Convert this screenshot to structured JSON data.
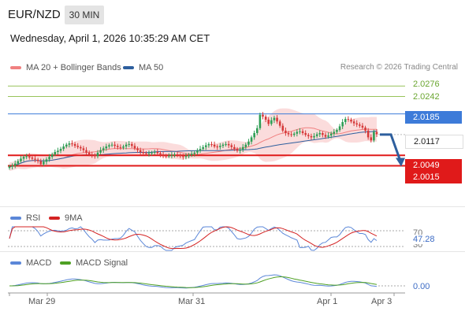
{
  "header": {
    "pair": "EUR/NZD",
    "timeframe": "30 MIN",
    "timestamp": "Wednesday, April 1, 2026 10:35:29 AM CET",
    "credit": "Research © 2026 Trading Central"
  },
  "colors": {
    "bollinger": "#f08080",
    "ma50": "#2e5f9e",
    "resistance": "#98c45a",
    "pivot": "#3d7bd9",
    "support": "#e01a1a",
    "price": "#222222",
    "up_candle": "#2e9e55",
    "down_candle": "#d63a3a",
    "rsi": "#5b87d8",
    "rsi_ma": "#d42323",
    "macd": "#5b87d8",
    "macd_signal": "#4ea023"
  },
  "chart_data": [
    {
      "type": "candlestick",
      "title": "EUR/NZD",
      "legend": [
        "MA 20 + Bollinger Bands",
        "MA 50"
      ],
      "legend_position": "top-left",
      "x_ticks": [
        "Mar 29",
        "Mar 31",
        "Apr 1",
        "Apr 3"
      ],
      "ylim": [
        1.99,
        2.03
      ],
      "levels": [
        {
          "value": "2.0276",
          "kind": "resistance"
        },
        {
          "value": "2.0242",
          "kind": "resistance"
        },
        {
          "value": "2.0185",
          "kind": "pivot"
        },
        {
          "value": "2.0117",
          "kind": "price"
        },
        {
          "value": "2.0049",
          "kind": "support"
        },
        {
          "value": "2.0015",
          "kind": "support"
        }
      ],
      "close_series": [
        2.0012,
        2.0015,
        2.0022,
        2.003,
        2.0038,
        2.0044,
        2.0046,
        2.0042,
        2.0038,
        2.0035,
        2.003,
        2.002,
        2.0028,
        2.0036,
        2.0044,
        2.0052,
        2.006,
        2.0064,
        2.007,
        2.0078,
        2.0084,
        2.0088,
        2.0086,
        2.008,
        2.0076,
        2.0072,
        2.0066,
        2.0058,
        2.0052,
        2.005,
        2.0046,
        2.0058,
        2.0066,
        2.0072,
        2.0078,
        2.0082,
        2.0084,
        2.008,
        2.0076,
        2.0074,
        2.0078,
        2.0084,
        2.0086,
        2.008,
        2.0072,
        2.0066,
        2.006,
        2.0056,
        2.0054,
        2.0056,
        2.0058,
        2.006,
        2.0056,
        2.0052,
        2.0048,
        2.0046,
        2.0048,
        2.005,
        2.0052,
        2.005,
        2.0046,
        2.0044,
        2.0046,
        2.005,
        2.0054,
        2.0058,
        2.0064,
        2.007,
        2.0076,
        2.0082,
        2.0086,
        2.0084,
        2.0078,
        2.0076,
        2.008,
        2.0084,
        2.0086,
        2.0082,
        2.0076,
        2.007,
        2.0064,
        2.0068,
        2.0076,
        2.0084,
        2.0094,
        2.0108,
        2.0122,
        2.0138,
        2.0182,
        2.0176,
        2.0166,
        2.0152,
        2.0164,
        2.0172,
        2.016,
        2.0146,
        2.013,
        2.0122,
        2.0118,
        2.0116,
        2.012,
        2.0126,
        2.0128,
        2.0122,
        2.0116,
        2.0112,
        2.0108,
        2.0112,
        2.0118,
        2.0122,
        2.0116,
        2.011,
        2.0114,
        2.012,
        2.0126,
        2.0132,
        2.0144,
        2.0158,
        2.0168,
        2.0166,
        2.016,
        2.0154,
        2.015,
        2.0146,
        2.014,
        2.013,
        2.0108,
        2.0098,
        2.0126,
        2.0118
      ],
      "forecast": {
        "from": "2.0117",
        "to": "2.0015"
      }
    },
    {
      "type": "line",
      "legend": [
        "RSI",
        "9MA"
      ],
      "y_ticks": [
        "70",
        "30"
      ],
      "last_value": "47.28",
      "ylim": [
        30,
        70
      ]
    },
    {
      "type": "line",
      "legend": [
        "MACD",
        "MACD Signal"
      ],
      "last_value": "0.00"
    }
  ]
}
